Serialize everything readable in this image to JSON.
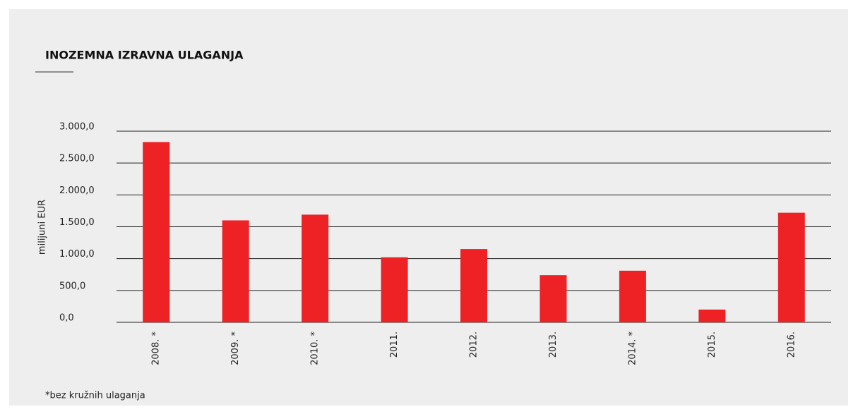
{
  "chart_data": {
    "type": "bar",
    "title": "INOZEMNA IZRAVNA ULAGANJA",
    "ylabel": "milijuni EUR",
    "note": "*bez kružnih ulaganja",
    "categories": [
      "2008. *",
      "2009. *",
      "2010. *",
      "2011.",
      "2012.",
      "2013.",
      "2014. *",
      "2015.",
      "2016."
    ],
    "values": [
      2830,
      1600,
      1690,
      1020,
      1150,
      740,
      810,
      200,
      1720
    ],
    "color": "#ee2124",
    "ylim": [
      0,
      3000
    ],
    "yticks": [
      {
        "value": 0,
        "label": "0,0"
      },
      {
        "value": 500,
        "label": "500,0"
      },
      {
        "value": 1000,
        "label": "1.000,0"
      },
      {
        "value": 1500,
        "label": "1.500,0"
      },
      {
        "value": 2000,
        "label": "2.000,0"
      },
      {
        "value": 2500,
        "label": "2.500,0"
      },
      {
        "value": 3000,
        "label": "3.000,0"
      }
    ],
    "grid": true
  }
}
